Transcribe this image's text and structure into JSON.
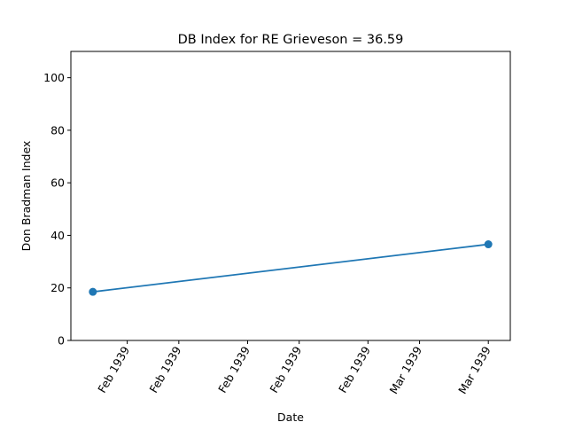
{
  "colors": {
    "series": "#1f77b4",
    "axes": "#000000",
    "background": "#ffffff"
  },
  "chart_data": {
    "type": "line",
    "title": "DB Index for RE Grieveson = 36.59",
    "xlabel": "Date",
    "ylabel": "Don Bradman Index",
    "grid": false,
    "legend": "none",
    "ylim": [
      0,
      110
    ],
    "xlim": [
      "1939-02-10",
      "1939-03-05"
    ],
    "yticks": [
      0,
      20,
      40,
      60,
      80,
      100
    ],
    "xticks": [
      {
        "date": "1939-02-12",
        "label": "Feb 1939"
      },
      {
        "date": "1939-02-15",
        "label": "Feb 1939"
      },
      {
        "date": "1939-02-19",
        "label": "Feb 1939"
      },
      {
        "date": "1939-02-22",
        "label": "Feb 1939"
      },
      {
        "date": "1939-02-26",
        "label": "Feb 1939"
      },
      {
        "date": "1939-03-01",
        "label": "Mar 1939"
      },
      {
        "date": "1939-03-05",
        "label": "Mar 1939"
      }
    ],
    "series": [
      {
        "points": [
          {
            "x": "1939-02-10",
            "y": 18.5
          },
          {
            "x": "1939-03-05",
            "y": 36.59
          }
        ]
      }
    ]
  }
}
